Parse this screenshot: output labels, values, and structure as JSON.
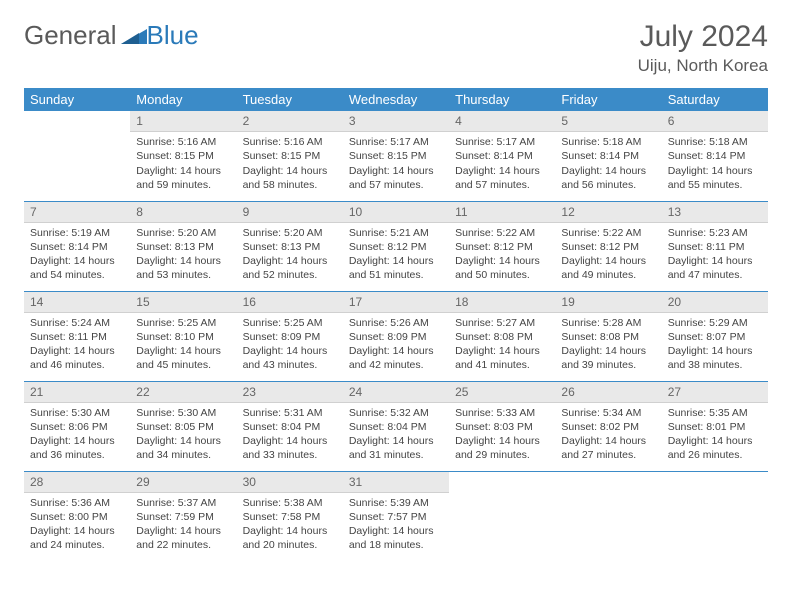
{
  "brand": {
    "part1": "General",
    "part2": "Blue"
  },
  "title": "July 2024",
  "location": "Uiju, North Korea",
  "weekdays": [
    "Sunday",
    "Monday",
    "Tuesday",
    "Wednesday",
    "Thursday",
    "Friday",
    "Saturday"
  ],
  "colors": {
    "header_bg": "#3b8bc8",
    "header_text": "#ffffff",
    "daynum_bg": "#e9e9e9",
    "text": "#444444",
    "accent": "#2a7ab9"
  },
  "weeks": [
    [
      {
        "n": "",
        "sr": "",
        "ss": "",
        "dl": ""
      },
      {
        "n": "1",
        "sr": "Sunrise: 5:16 AM",
        "ss": "Sunset: 8:15 PM",
        "dl": "Daylight: 14 hours and 59 minutes."
      },
      {
        "n": "2",
        "sr": "Sunrise: 5:16 AM",
        "ss": "Sunset: 8:15 PM",
        "dl": "Daylight: 14 hours and 58 minutes."
      },
      {
        "n": "3",
        "sr": "Sunrise: 5:17 AM",
        "ss": "Sunset: 8:15 PM",
        "dl": "Daylight: 14 hours and 57 minutes."
      },
      {
        "n": "4",
        "sr": "Sunrise: 5:17 AM",
        "ss": "Sunset: 8:14 PM",
        "dl": "Daylight: 14 hours and 57 minutes."
      },
      {
        "n": "5",
        "sr": "Sunrise: 5:18 AM",
        "ss": "Sunset: 8:14 PM",
        "dl": "Daylight: 14 hours and 56 minutes."
      },
      {
        "n": "6",
        "sr": "Sunrise: 5:18 AM",
        "ss": "Sunset: 8:14 PM",
        "dl": "Daylight: 14 hours and 55 minutes."
      }
    ],
    [
      {
        "n": "7",
        "sr": "Sunrise: 5:19 AM",
        "ss": "Sunset: 8:14 PM",
        "dl": "Daylight: 14 hours and 54 minutes."
      },
      {
        "n": "8",
        "sr": "Sunrise: 5:20 AM",
        "ss": "Sunset: 8:13 PM",
        "dl": "Daylight: 14 hours and 53 minutes."
      },
      {
        "n": "9",
        "sr": "Sunrise: 5:20 AM",
        "ss": "Sunset: 8:13 PM",
        "dl": "Daylight: 14 hours and 52 minutes."
      },
      {
        "n": "10",
        "sr": "Sunrise: 5:21 AM",
        "ss": "Sunset: 8:12 PM",
        "dl": "Daylight: 14 hours and 51 minutes."
      },
      {
        "n": "11",
        "sr": "Sunrise: 5:22 AM",
        "ss": "Sunset: 8:12 PM",
        "dl": "Daylight: 14 hours and 50 minutes."
      },
      {
        "n": "12",
        "sr": "Sunrise: 5:22 AM",
        "ss": "Sunset: 8:12 PM",
        "dl": "Daylight: 14 hours and 49 minutes."
      },
      {
        "n": "13",
        "sr": "Sunrise: 5:23 AM",
        "ss": "Sunset: 8:11 PM",
        "dl": "Daylight: 14 hours and 47 minutes."
      }
    ],
    [
      {
        "n": "14",
        "sr": "Sunrise: 5:24 AM",
        "ss": "Sunset: 8:11 PM",
        "dl": "Daylight: 14 hours and 46 minutes."
      },
      {
        "n": "15",
        "sr": "Sunrise: 5:25 AM",
        "ss": "Sunset: 8:10 PM",
        "dl": "Daylight: 14 hours and 45 minutes."
      },
      {
        "n": "16",
        "sr": "Sunrise: 5:25 AM",
        "ss": "Sunset: 8:09 PM",
        "dl": "Daylight: 14 hours and 43 minutes."
      },
      {
        "n": "17",
        "sr": "Sunrise: 5:26 AM",
        "ss": "Sunset: 8:09 PM",
        "dl": "Daylight: 14 hours and 42 minutes."
      },
      {
        "n": "18",
        "sr": "Sunrise: 5:27 AM",
        "ss": "Sunset: 8:08 PM",
        "dl": "Daylight: 14 hours and 41 minutes."
      },
      {
        "n": "19",
        "sr": "Sunrise: 5:28 AM",
        "ss": "Sunset: 8:08 PM",
        "dl": "Daylight: 14 hours and 39 minutes."
      },
      {
        "n": "20",
        "sr": "Sunrise: 5:29 AM",
        "ss": "Sunset: 8:07 PM",
        "dl": "Daylight: 14 hours and 38 minutes."
      }
    ],
    [
      {
        "n": "21",
        "sr": "Sunrise: 5:30 AM",
        "ss": "Sunset: 8:06 PM",
        "dl": "Daylight: 14 hours and 36 minutes."
      },
      {
        "n": "22",
        "sr": "Sunrise: 5:30 AM",
        "ss": "Sunset: 8:05 PM",
        "dl": "Daylight: 14 hours and 34 minutes."
      },
      {
        "n": "23",
        "sr": "Sunrise: 5:31 AM",
        "ss": "Sunset: 8:04 PM",
        "dl": "Daylight: 14 hours and 33 minutes."
      },
      {
        "n": "24",
        "sr": "Sunrise: 5:32 AM",
        "ss": "Sunset: 8:04 PM",
        "dl": "Daylight: 14 hours and 31 minutes."
      },
      {
        "n": "25",
        "sr": "Sunrise: 5:33 AM",
        "ss": "Sunset: 8:03 PM",
        "dl": "Daylight: 14 hours and 29 minutes."
      },
      {
        "n": "26",
        "sr": "Sunrise: 5:34 AM",
        "ss": "Sunset: 8:02 PM",
        "dl": "Daylight: 14 hours and 27 minutes."
      },
      {
        "n": "27",
        "sr": "Sunrise: 5:35 AM",
        "ss": "Sunset: 8:01 PM",
        "dl": "Daylight: 14 hours and 26 minutes."
      }
    ],
    [
      {
        "n": "28",
        "sr": "Sunrise: 5:36 AM",
        "ss": "Sunset: 8:00 PM",
        "dl": "Daylight: 14 hours and 24 minutes."
      },
      {
        "n": "29",
        "sr": "Sunrise: 5:37 AM",
        "ss": "Sunset: 7:59 PM",
        "dl": "Daylight: 14 hours and 22 minutes."
      },
      {
        "n": "30",
        "sr": "Sunrise: 5:38 AM",
        "ss": "Sunset: 7:58 PM",
        "dl": "Daylight: 14 hours and 20 minutes."
      },
      {
        "n": "31",
        "sr": "Sunrise: 5:39 AM",
        "ss": "Sunset: 7:57 PM",
        "dl": "Daylight: 14 hours and 18 minutes."
      },
      {
        "n": "",
        "sr": "",
        "ss": "",
        "dl": ""
      },
      {
        "n": "",
        "sr": "",
        "ss": "",
        "dl": ""
      },
      {
        "n": "",
        "sr": "",
        "ss": "",
        "dl": ""
      }
    ]
  ]
}
